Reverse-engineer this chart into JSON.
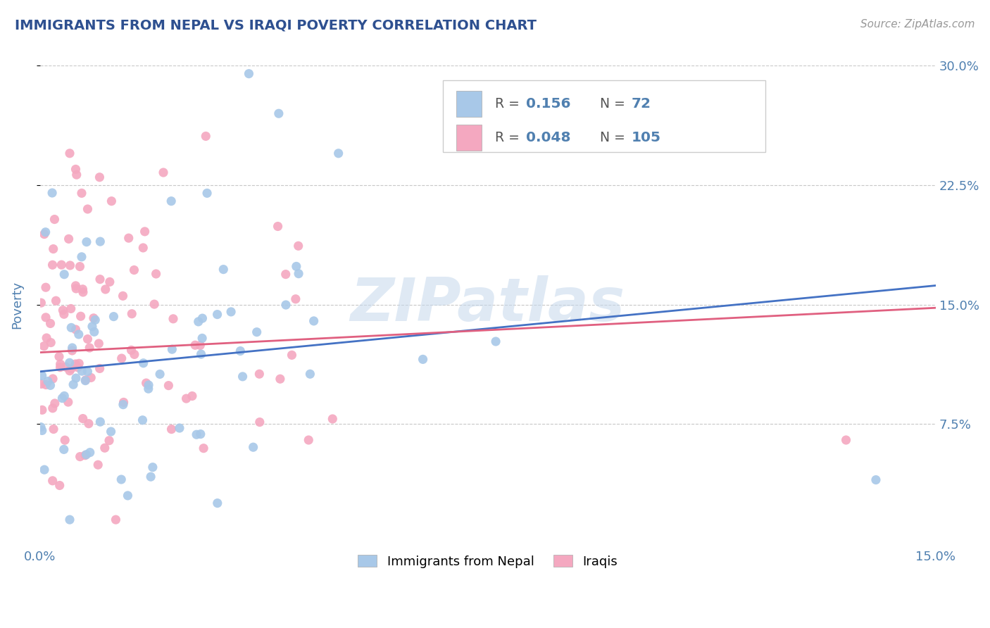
{
  "title": "IMMIGRANTS FROM NEPAL VS IRAQI POVERTY CORRELATION CHART",
  "source": "Source: ZipAtlas.com",
  "ylabel": "Poverty",
  "xlim": [
    0.0,
    0.15
  ],
  "ylim": [
    0.0,
    0.3
  ],
  "nepal_color": "#a8c8e8",
  "iraqi_color": "#f4a8c0",
  "nepal_line_color": "#4472c4",
  "iraqi_line_color": "#e06080",
  "nepal_R": 0.156,
  "nepal_N": 72,
  "iraqi_R": 0.048,
  "iraqi_N": 105,
  "background_color": "#ffffff",
  "grid_color": "#c8c8c8",
  "title_color": "#2e5090",
  "tick_color": "#5080b0",
  "watermark": "ZIPatlas",
  "legend_nepal_label": "Immigrants from Nepal",
  "legend_iraqi_label": "Iraqis",
  "nepal_line_x0": 0.0,
  "nepal_line_y0": 0.108,
  "nepal_line_x1": 0.15,
  "nepal_line_y1": 0.162,
  "iraqi_line_x0": 0.0,
  "iraqi_line_y0": 0.12,
  "iraqi_line_x1": 0.15,
  "iraqi_line_y1": 0.148
}
